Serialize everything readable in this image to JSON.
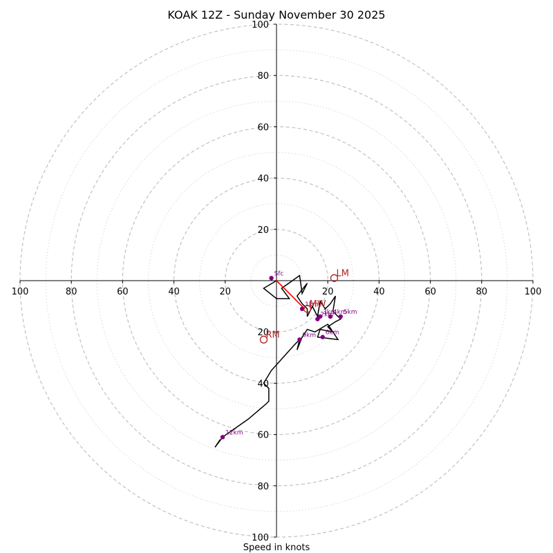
{
  "chart_data": {
    "type": "hodograph",
    "title": "KOAK 12Z - Sunday November 30 2025",
    "xlabel": "Speed in knots",
    "units": "knots",
    "range": [
      -100,
      100
    ],
    "major_rings": [
      20,
      40,
      60,
      80,
      100
    ],
    "minor_rings": [
      10,
      30,
      50,
      70,
      90
    ],
    "x_tick_labels": [
      "100",
      "80",
      "60",
      "40",
      "20",
      "20",
      "40",
      "60",
      "80",
      "100"
    ],
    "y_tick_labels": [
      "100",
      "80",
      "60",
      "40",
      "20",
      "20",
      "40",
      "60",
      "80",
      "100"
    ],
    "colors": {
      "trace": "#000000",
      "shear_vector": "#ff0000",
      "height_marker": "#800080",
      "motion_marker": "#b22222",
      "grid": "#bbbbbb"
    },
    "wind_trace": [
      [
        0,
        0
      ],
      [
        -5,
        -3
      ],
      [
        0,
        -7
      ],
      [
        5,
        -7
      ],
      [
        2,
        -3
      ],
      [
        9,
        2
      ],
      [
        10,
        -5
      ],
      [
        12,
        -1
      ],
      [
        8,
        -6
      ],
      [
        10,
        -9
      ],
      [
        12,
        -11
      ],
      [
        12,
        -14
      ],
      [
        14,
        -10
      ],
      [
        16,
        -14
      ],
      [
        17,
        -8
      ],
      [
        19,
        -11
      ],
      [
        21,
        -9
      ],
      [
        23,
        -6
      ],
      [
        22,
        -12
      ],
      [
        25,
        -15
      ],
      [
        23,
        -16
      ],
      [
        20,
        -18
      ],
      [
        22,
        -20
      ],
      [
        17,
        -19
      ],
      [
        16,
        -22
      ],
      [
        24,
        -23
      ],
      [
        20,
        -17
      ],
      [
        15,
        -20
      ],
      [
        12,
        -19
      ],
      [
        10,
        -22
      ],
      [
        8,
        -27
      ],
      [
        9,
        -23
      ],
      [
        7,
        -25
      ],
      [
        -2,
        -35
      ],
      [
        -5,
        -40
      ],
      [
        -3,
        -42
      ],
      [
        -3,
        -47
      ],
      [
        -4,
        -48
      ],
      [
        -11,
        -54
      ],
      [
        -21,
        -61
      ],
      [
        -24,
        -65
      ],
      [
        -22,
        -62
      ]
    ],
    "height_markers": [
      {
        "label": "Sfc",
        "u": -2,
        "v": 1
      },
      {
        "label": "1km",
        "u": 10,
        "v": -11
      },
      {
        "label": "2km",
        "u": 16,
        "v": -15
      },
      {
        "label": "3km",
        "u": 17,
        "v": -14
      },
      {
        "label": "4km",
        "u": 21,
        "v": -14
      },
      {
        "label": "5km",
        "u": 25,
        "v": -14
      },
      {
        "label": "6km",
        "u": 18,
        "v": -22
      },
      {
        "label": "9km",
        "u": 9,
        "v": -23
      },
      {
        "label": "12km",
        "u": -21,
        "v": -61
      }
    ],
    "motion_markers": [
      {
        "label": "LM",
        "u": 22.5,
        "v": 1
      },
      {
        "label": "RM",
        "u": -5,
        "v": -23
      },
      {
        "label": "MW",
        "u": 12,
        "v": -11
      }
    ],
    "shear_vector": {
      "from": [
        0,
        0
      ],
      "to": [
        11,
        -11
      ]
    }
  }
}
